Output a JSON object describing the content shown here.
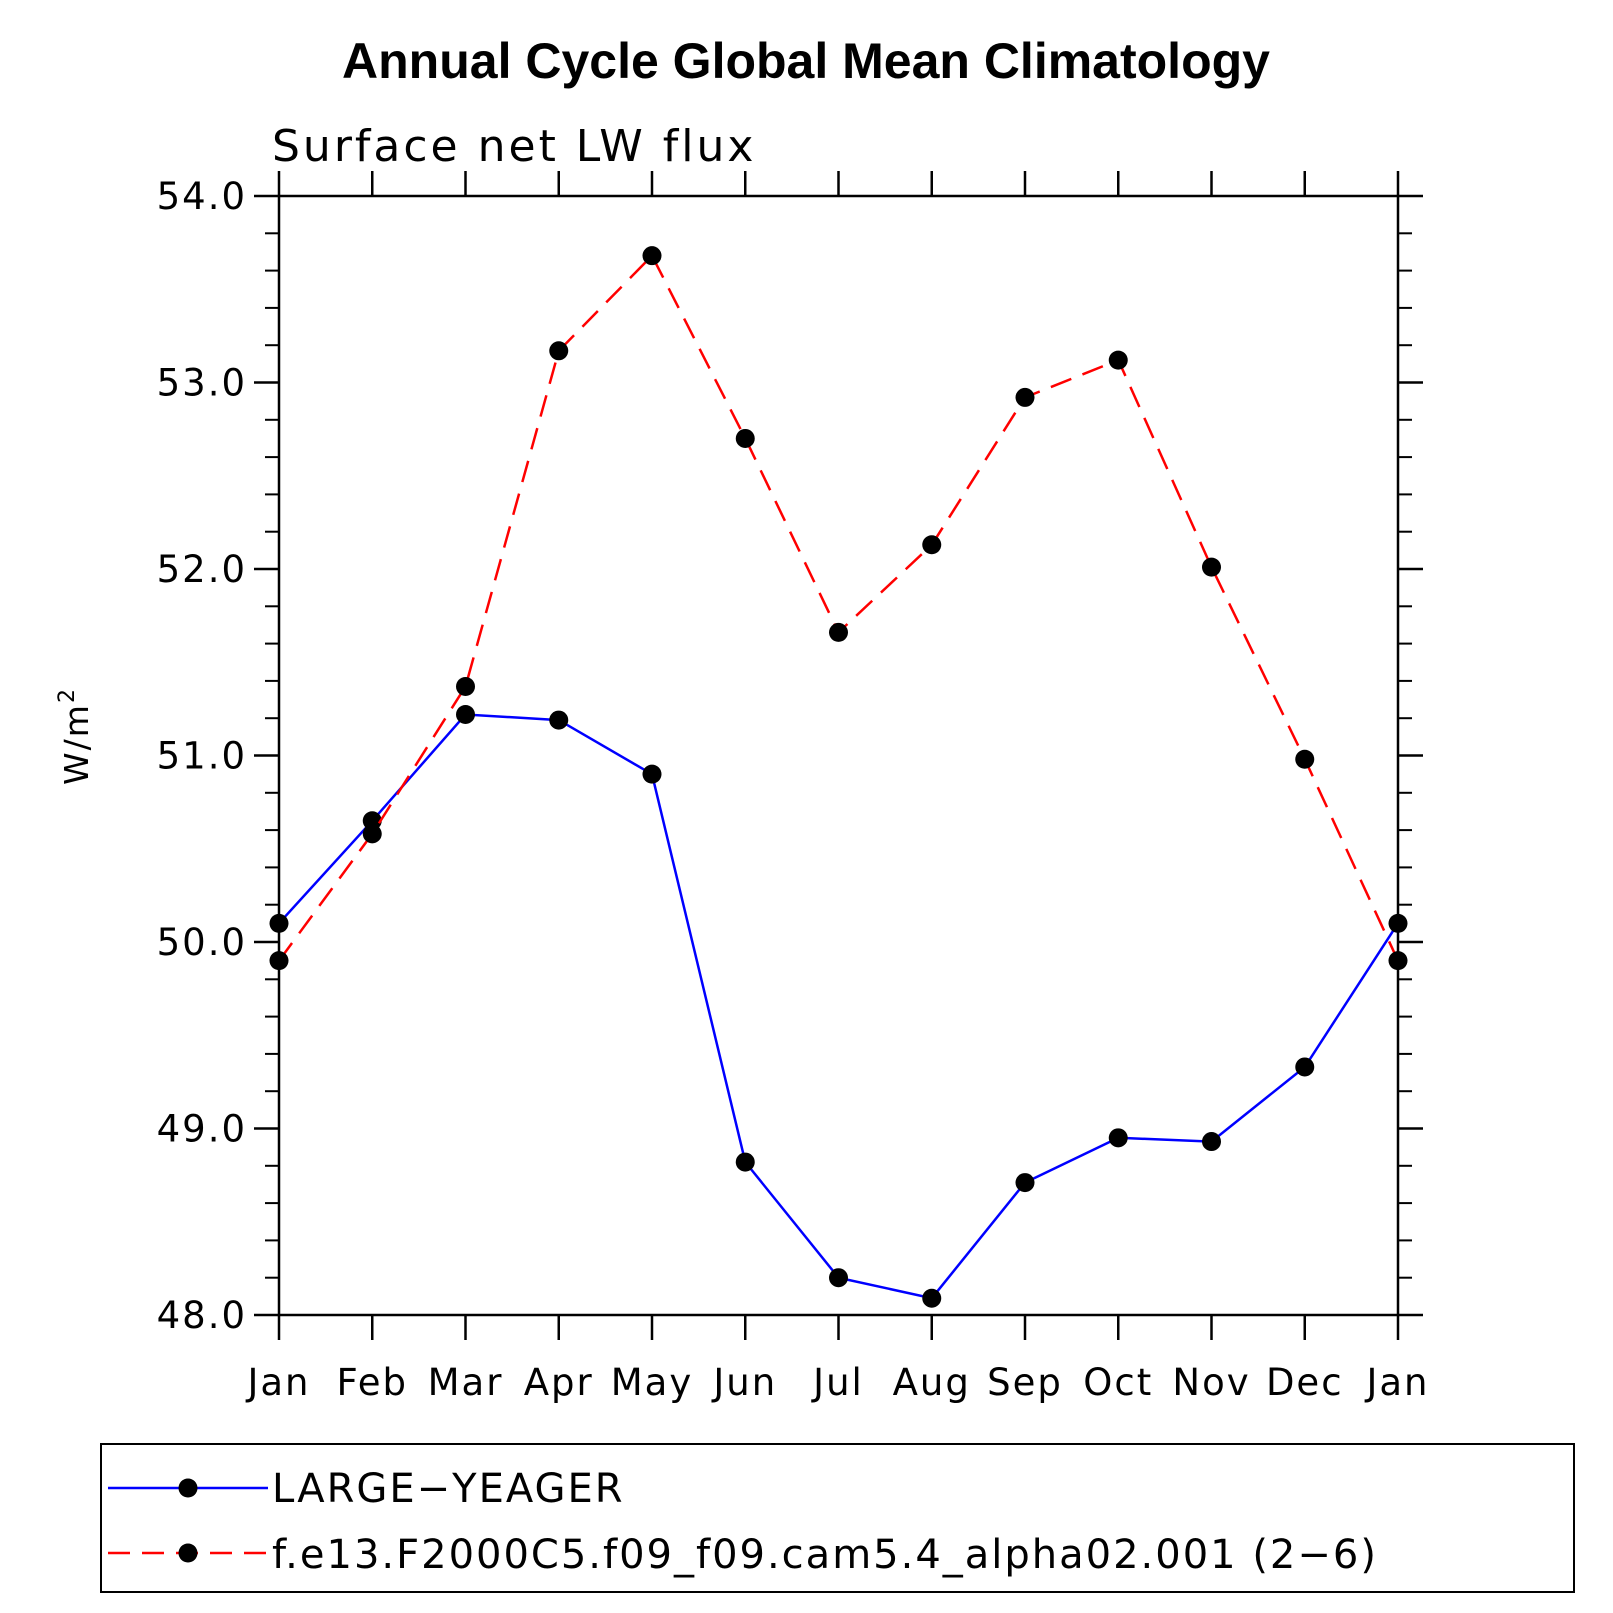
{
  "chart_data": {
    "type": "line",
    "title": "Annual Cycle Global Mean Climatology",
    "subtitle": "Surface net LW flux",
    "ylabel": "W/m",
    "ylabel_superscript": "2",
    "xlabel": "",
    "categories": [
      "Jan",
      "Feb",
      "Mar",
      "Apr",
      "May",
      "Jun",
      "Jul",
      "Aug",
      "Sep",
      "Oct",
      "Nov",
      "Dec",
      "Jan"
    ],
    "ylim": [
      48.0,
      54.0
    ],
    "yticks": [
      "48.0",
      "49.0",
      "50.0",
      "51.0",
      "52.0",
      "53.0",
      "54.0"
    ],
    "grid": false,
    "legend_position": "bottom",
    "series": [
      {
        "name": "LARGE−YEAGER",
        "color": "#0000ff",
        "dash": "solid",
        "values": [
          50.1,
          50.65,
          51.22,
          51.19,
          50.9,
          48.82,
          48.2,
          48.09,
          48.71,
          48.95,
          48.93,
          49.33,
          50.1
        ]
      },
      {
        "name": "f.e13.F2000C5.f09_f09.cam5.4_alpha02.001 (2−6)",
        "color": "#ff0000",
        "dash": "dashed",
        "values": [
          49.9,
          50.58,
          51.37,
          53.17,
          53.68,
          52.7,
          51.66,
          52.13,
          52.92,
          53.12,
          52.01,
          50.98,
          49.9
        ]
      }
    ]
  }
}
